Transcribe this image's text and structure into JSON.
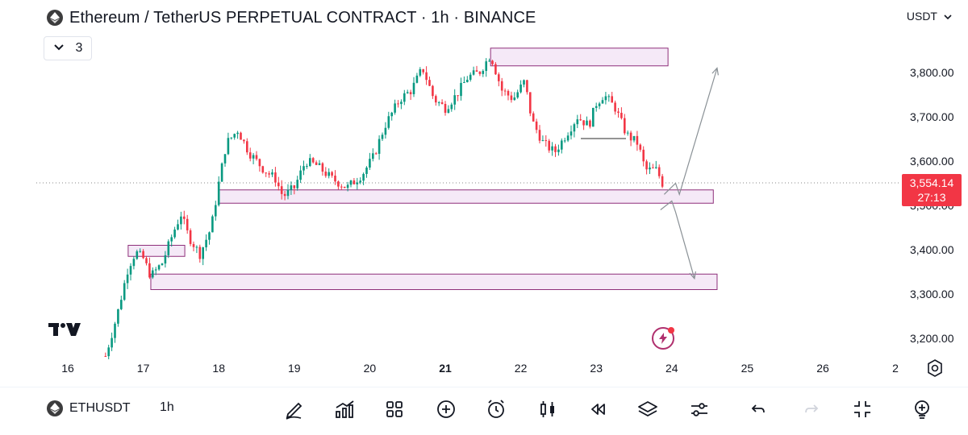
{
  "header": {
    "title": "Ethereum / TetherUS PERPETUAL CONTRACT · 1h · BINANCE",
    "currency": "USDT",
    "legend_count": "3"
  },
  "price_axis": {
    "labels": [
      "3,800.00",
      "3,700.00",
      "3,600.00",
      "3,500.00",
      "3,400.00",
      "3,300.00",
      "3,200.00"
    ],
    "current_price": "3,554.14",
    "countdown": "27:13"
  },
  "time_axis": {
    "labels": [
      "16",
      "17",
      "18",
      "19",
      "20",
      "21",
      "22",
      "23",
      "24",
      "25",
      "26",
      "2"
    ]
  },
  "chart_data": {
    "type": "candlestick",
    "symbol": "ETHUSDT",
    "interval": "1h",
    "ylim": [
      3160,
      3860
    ],
    "y_ticks": [
      3200,
      3300,
      3400,
      3500,
      3600,
      3700,
      3800
    ],
    "x_ticks": [
      "16",
      "17",
      "18",
      "19",
      "20",
      "21",
      "22",
      "23",
      "24",
      "25",
      "26",
      "2"
    ],
    "last_price": 3554.14,
    "up_color": "#089981",
    "down_color": "#f23645",
    "path_points": [
      [
        16.5,
        3160
      ],
      [
        16.65,
        3250
      ],
      [
        16.8,
        3360
      ],
      [
        16.9,
        3395
      ],
      [
        17.0,
        3380
      ],
      [
        17.1,
        3340
      ],
      [
        17.25,
        3370
      ],
      [
        17.4,
        3440
      ],
      [
        17.5,
        3480
      ],
      [
        17.6,
        3430
      ],
      [
        17.75,
        3390
      ],
      [
        17.9,
        3450
      ],
      [
        18.0,
        3550
      ],
      [
        18.1,
        3640
      ],
      [
        18.25,
        3670
      ],
      [
        18.4,
        3620
      ],
      [
        18.6,
        3580
      ],
      [
        18.75,
        3560
      ],
      [
        18.85,
        3520
      ],
      [
        19.0,
        3540
      ],
      [
        19.15,
        3600
      ],
      [
        19.3,
        3590
      ],
      [
        19.5,
        3560
      ],
      [
        19.7,
        3540
      ],
      [
        19.9,
        3570
      ],
      [
        20.05,
        3610
      ],
      [
        20.2,
        3680
      ],
      [
        20.4,
        3740
      ],
      [
        20.55,
        3760
      ],
      [
        20.7,
        3810
      ],
      [
        20.85,
        3740
      ],
      [
        21.0,
        3720
      ],
      [
        21.15,
        3750
      ],
      [
        21.3,
        3790
      ],
      [
        21.45,
        3800
      ],
      [
        21.6,
        3840
      ],
      [
        21.75,
        3760
      ],
      [
        21.9,
        3740
      ],
      [
        22.05,
        3780
      ],
      [
        22.15,
        3690
      ],
      [
        22.3,
        3640
      ],
      [
        22.45,
        3620
      ],
      [
        22.6,
        3660
      ],
      [
        22.75,
        3700
      ],
      [
        22.9,
        3680
      ],
      [
        23.0,
        3730
      ],
      [
        23.1,
        3750
      ],
      [
        23.25,
        3720
      ],
      [
        23.4,
        3660
      ],
      [
        23.55,
        3640
      ],
      [
        23.65,
        3580
      ],
      [
        23.8,
        3580
      ],
      [
        23.9,
        3540
      ]
    ],
    "zones": [
      {
        "y_low": 3815,
        "y_high": 3855,
        "x_start": 21.6,
        "x_end": 23.95
      },
      {
        "y_low": 3505,
        "y_high": 3535,
        "x_start": 18.0,
        "x_end": 24.55
      },
      {
        "y_low": 3385,
        "y_high": 3410,
        "x_start": 16.8,
        "x_end": 17.55
      },
      {
        "y_low": 3310,
        "y_high": 3345,
        "x_start": 17.1,
        "x_end": 24.6
      }
    ],
    "projections": [
      {
        "name": "bullish",
        "points": [
          [
            23.9,
            3525
          ],
          [
            24.05,
            3550
          ],
          [
            24.1,
            3525
          ],
          [
            24.6,
            3810
          ]
        ]
      },
      {
        "name": "bearish",
        "points": [
          [
            23.85,
            3490
          ],
          [
            24.0,
            3510
          ],
          [
            24.05,
            3485
          ],
          [
            24.3,
            3335
          ]
        ]
      }
    ]
  },
  "bottom_bar": {
    "symbol": "ETHUSDT",
    "interval": "1h"
  }
}
